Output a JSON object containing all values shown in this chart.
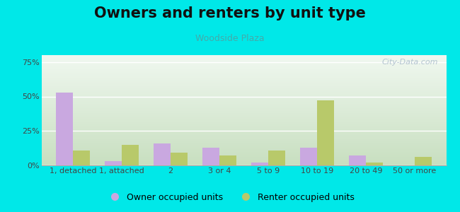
{
  "title": "Owners and renters by unit type",
  "subtitle": "Woodside Plaza",
  "categories": [
    "1, detached",
    "1, attached",
    "2",
    "3 or 4",
    "5 to 9",
    "10 to 19",
    "20 to 49",
    "50 or more"
  ],
  "owner_values": [
    53,
    3,
    16,
    13,
    2,
    13,
    7,
    0
  ],
  "renter_values": [
    11,
    15,
    9,
    7,
    11,
    47,
    2,
    6
  ],
  "owner_color": "#c9a8e0",
  "renter_color": "#b8c96a",
  "background_color": "#00e8e8",
  "plot_bg_top": "#f0f8f0",
  "plot_bg_bottom": "#c8dfc0",
  "ylim": [
    0,
    80
  ],
  "yticks": [
    0,
    25,
    50,
    75
  ],
  "ytick_labels": [
    "0%",
    "25%",
    "50%",
    "75%"
  ],
  "legend_owner": "Owner occupied units",
  "legend_renter": "Renter occupied units",
  "title_fontsize": 15,
  "subtitle_fontsize": 9,
  "tick_fontsize": 8,
  "legend_fontsize": 9,
  "watermark_text": "City-Data.com",
  "bar_width": 0.35
}
